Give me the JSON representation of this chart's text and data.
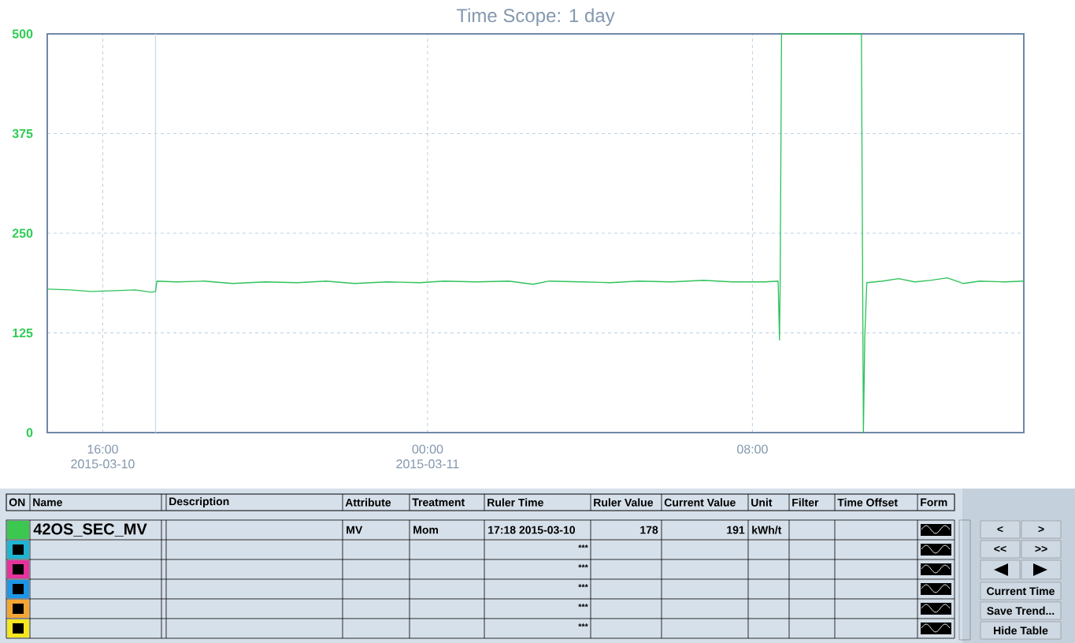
{
  "chart_data": {
    "type": "line",
    "title": "Time Scope: 1 day",
    "x": [
      "2015-03-10T14:38",
      "2015-03-10T15:12",
      "2015-03-10T15:42",
      "2015-03-10T16:18",
      "2015-03-10T16:48",
      "2015-03-10T17:12",
      "2015-03-10T17:18",
      "2015-03-10T17:20",
      "2015-03-10T17:48",
      "2015-03-10T18:30",
      "2015-03-10T19:12",
      "2015-03-10T20:00",
      "2015-03-10T20:48",
      "2015-03-10T21:30",
      "2015-03-10T22:12",
      "2015-03-10T23:00",
      "2015-03-10T23:48",
      "2015-03-11T00:24",
      "2015-03-11T01:12",
      "2015-03-11T02:00",
      "2015-03-11T02:36",
      "2015-03-11T03:00",
      "2015-03-11T03:48",
      "2015-03-11T04:30",
      "2015-03-11T05:12",
      "2015-03-11T06:00",
      "2015-03-11T06:48",
      "2015-03-11T07:30",
      "2015-03-11T08:18",
      "2015-03-11T08:38",
      "2015-03-11T08:40",
      "2015-03-11T08:41",
      "2015-03-11T08:43",
      "2015-03-11T10:41",
      "2015-03-11T10:44",
      "2015-03-11T10:46",
      "2015-03-11T10:49",
      "2015-03-11T11:12",
      "2015-03-11T11:36",
      "2015-03-11T12:00",
      "2015-03-11T12:24",
      "2015-03-11T12:48",
      "2015-03-11T13:12",
      "2015-03-11T13:36",
      "2015-03-11T14:12",
      "2015-03-11T14:41"
    ],
    "series": [
      {
        "color": "#2ec35a",
        "values": [
          180,
          179,
          177,
          178,
          179,
          176,
          177,
          190,
          189,
          190,
          187,
          189,
          188,
          190,
          187,
          189,
          188,
          190,
          189,
          190,
          186,
          190,
          189,
          188,
          190,
          189,
          191,
          189,
          189,
          190,
          116,
          190,
          500,
          500,
          0,
          120,
          188,
          190,
          193,
          189,
          191,
          194,
          187,
          190,
          189,
          190
        ]
      }
    ],
    "xlim": [
      "2015-03-10T14:38",
      "2015-03-11T14:41"
    ],
    "ylim": [
      0,
      500
    ],
    "xticks": [
      {
        "value": "2015-03-10T16:00",
        "label": "16:00 2015-03-10"
      },
      {
        "value": "2015-03-11T00:00",
        "label": "00:00 2015-03-11"
      },
      {
        "value": "2015-03-11T08:00",
        "label": "08:00"
      }
    ],
    "yticks": [
      0,
      125,
      250,
      375,
      500
    ],
    "grid": true,
    "line_style": "solid",
    "ref_lines": [
      {
        "axis": "x",
        "value": "2015-03-10T17:18",
        "color": "#c8dcec"
      }
    ],
    "annotations": [
      "ON",
      "Name",
      "Description",
      "Attribute",
      "Treatment",
      "Ruler Time",
      "Ruler Value",
      "Current Value",
      "Unit",
      "Filter",
      "Time Offset",
      "Form",
      "42OS_SEC_MV",
      "MV",
      "Mom",
      "17:18 2015-03-10",
      "178",
      "191",
      "kWh/t",
      "***",
      "***",
      "***",
      "***",
      "***",
      "<",
      ">",
      "<<",
      ">>",
      "Current Time",
      "Save Trend...",
      "Hide Table"
    ]
  }
}
